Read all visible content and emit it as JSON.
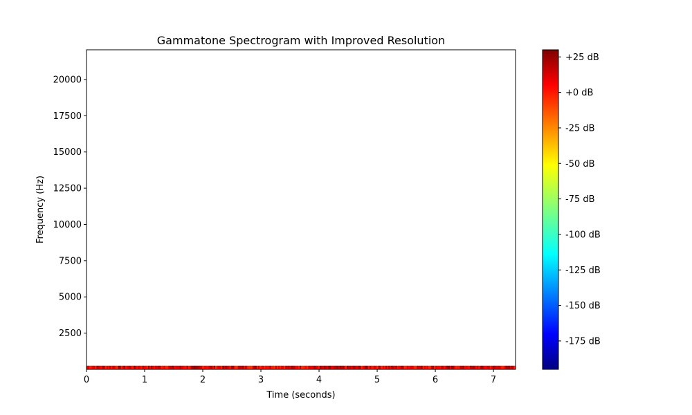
{
  "chart_data": {
    "type": "heatmap",
    "title": "Gammatone Spectrogram with Improved Resolution",
    "xlabel": "Time (seconds)",
    "ylabel": "Frequency (Hz)",
    "xlim": [
      0,
      7.38
    ],
    "ylim": [
      0,
      22050
    ],
    "x_ticks": [
      0,
      1,
      2,
      3,
      4,
      5,
      6,
      7
    ],
    "x_tick_labels": [
      "0",
      "1",
      "2",
      "3",
      "4",
      "5",
      "6",
      "7"
    ],
    "y_ticks": [
      2500,
      5000,
      7500,
      10000,
      12500,
      15000,
      17500,
      20000
    ],
    "y_tick_labels": [
      "2500",
      "5000",
      "7500",
      "10000",
      "12500",
      "15000",
      "17500",
      "20000"
    ],
    "energy_band_hz": [
      0,
      250
    ],
    "energy_band_db_range": [
      -10,
      25
    ],
    "grid": false,
    "colorbar": {
      "colormap": "jet",
      "range_db": [
        -195,
        30
      ],
      "ticks": [
        25,
        0,
        -25,
        -50,
        -75,
        -100,
        -125,
        -150,
        -175
      ],
      "tick_labels": [
        "+25 dB",
        "+0 dB",
        "-25 dB",
        "-50 dB",
        "-75 dB",
        "-100 dB",
        "-125 dB",
        "-150 dB",
        "-175 dB"
      ]
    }
  }
}
